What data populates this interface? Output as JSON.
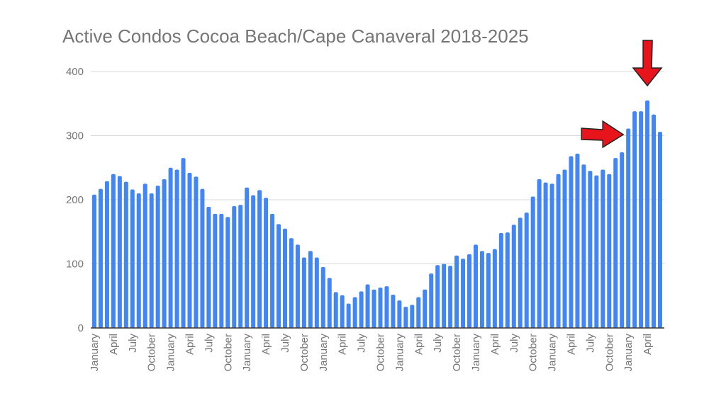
{
  "chart_data": {
    "type": "bar",
    "title": "Active Condos Cocoa Beach/Cape Canaveral 2018-2025",
    "xlabel": "",
    "ylabel": "",
    "ylim": [
      0,
      400
    ],
    "yticks": [
      0,
      100,
      200,
      300,
      400
    ],
    "grid": true,
    "bar_color": "#4285f4",
    "annotation_color": "#e8141c",
    "annotations": [
      "red-arrow-pointing-right-at-january-2025",
      "red-arrow-pointing-down-at-april-2025"
    ],
    "x_tick_labels": [
      "January",
      "April",
      "July",
      "October"
    ],
    "categories": [
      "2018-01",
      "2018-02",
      "2018-03",
      "2018-04",
      "2018-05",
      "2018-06",
      "2018-07",
      "2018-08",
      "2018-09",
      "2018-10",
      "2018-11",
      "2018-12",
      "2019-01",
      "2019-02",
      "2019-03",
      "2019-04",
      "2019-05",
      "2019-06",
      "2019-07",
      "2019-08",
      "2019-09",
      "2019-10",
      "2019-11",
      "2019-12",
      "2020-01",
      "2020-02",
      "2020-03",
      "2020-04",
      "2020-05",
      "2020-06",
      "2020-07",
      "2020-08",
      "2020-09",
      "2020-10",
      "2020-11",
      "2020-12",
      "2021-01",
      "2021-02",
      "2021-03",
      "2021-04",
      "2021-05",
      "2021-06",
      "2021-07",
      "2021-08",
      "2021-09",
      "2021-10",
      "2021-11",
      "2021-12",
      "2022-01",
      "2022-02",
      "2022-03",
      "2022-04",
      "2022-05",
      "2022-06",
      "2022-07",
      "2022-08",
      "2022-09",
      "2022-10",
      "2022-11",
      "2022-12",
      "2023-01",
      "2023-02",
      "2023-03",
      "2023-04",
      "2023-05",
      "2023-06",
      "2023-07",
      "2023-08",
      "2023-09",
      "2023-10",
      "2023-11",
      "2023-12",
      "2024-01",
      "2024-02",
      "2024-03",
      "2024-04",
      "2024-05",
      "2024-06",
      "2024-07",
      "2024-08",
      "2024-09",
      "2024-10",
      "2024-11",
      "2024-12",
      "2025-01",
      "2025-02",
      "2025-03",
      "2025-04",
      "2025-05",
      "2025-06"
    ],
    "values": [
      208,
      217,
      229,
      240,
      237,
      228,
      216,
      210,
      225,
      210,
      222,
      232,
      250,
      247,
      265,
      242,
      236,
      217,
      189,
      178,
      178,
      173,
      190,
      192,
      219,
      207,
      215,
      203,
      178,
      162,
      155,
      140,
      130,
      110,
      120,
      110,
      95,
      78,
      56,
      51,
      38,
      48,
      57,
      68,
      60,
      63,
      65,
      52,
      43,
      33,
      36,
      48,
      60,
      85,
      98,
      100,
      97,
      113,
      108,
      115,
      130,
      120,
      117,
      123,
      148,
      149,
      161,
      172,
      180,
      205,
      232,
      227,
      225,
      240,
      247,
      268,
      272,
      255,
      245,
      238,
      247,
      240,
      265,
      274,
      311,
      338,
      338,
      355,
      333,
      306
    ]
  }
}
